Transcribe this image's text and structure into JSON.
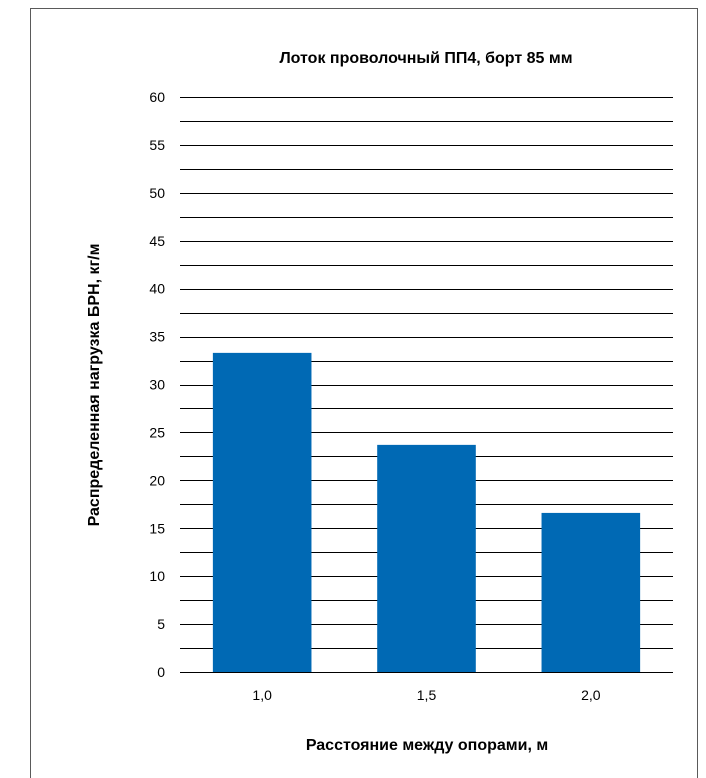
{
  "chart_data": {
    "type": "bar",
    "title": "Лоток проволочный ПП4, борт 85 мм",
    "xlabel": "Расстояние между опорами, м",
    "ylabel": "Распределенная нагрузка БРН, кг/м",
    "categories": [
      "1,0",
      "1,5",
      "2,0"
    ],
    "values": [
      33.3,
      23.7,
      16.6
    ],
    "ylim": [
      0,
      60
    ],
    "y_ticks": [
      "0",
      "5",
      "10",
      "15",
      "20",
      "25",
      "30",
      "35",
      "40",
      "45",
      "50",
      "55",
      "60"
    ],
    "grid": true,
    "legend": "none",
    "bar_color": "#0069b4",
    "grid_color": "#000000"
  }
}
